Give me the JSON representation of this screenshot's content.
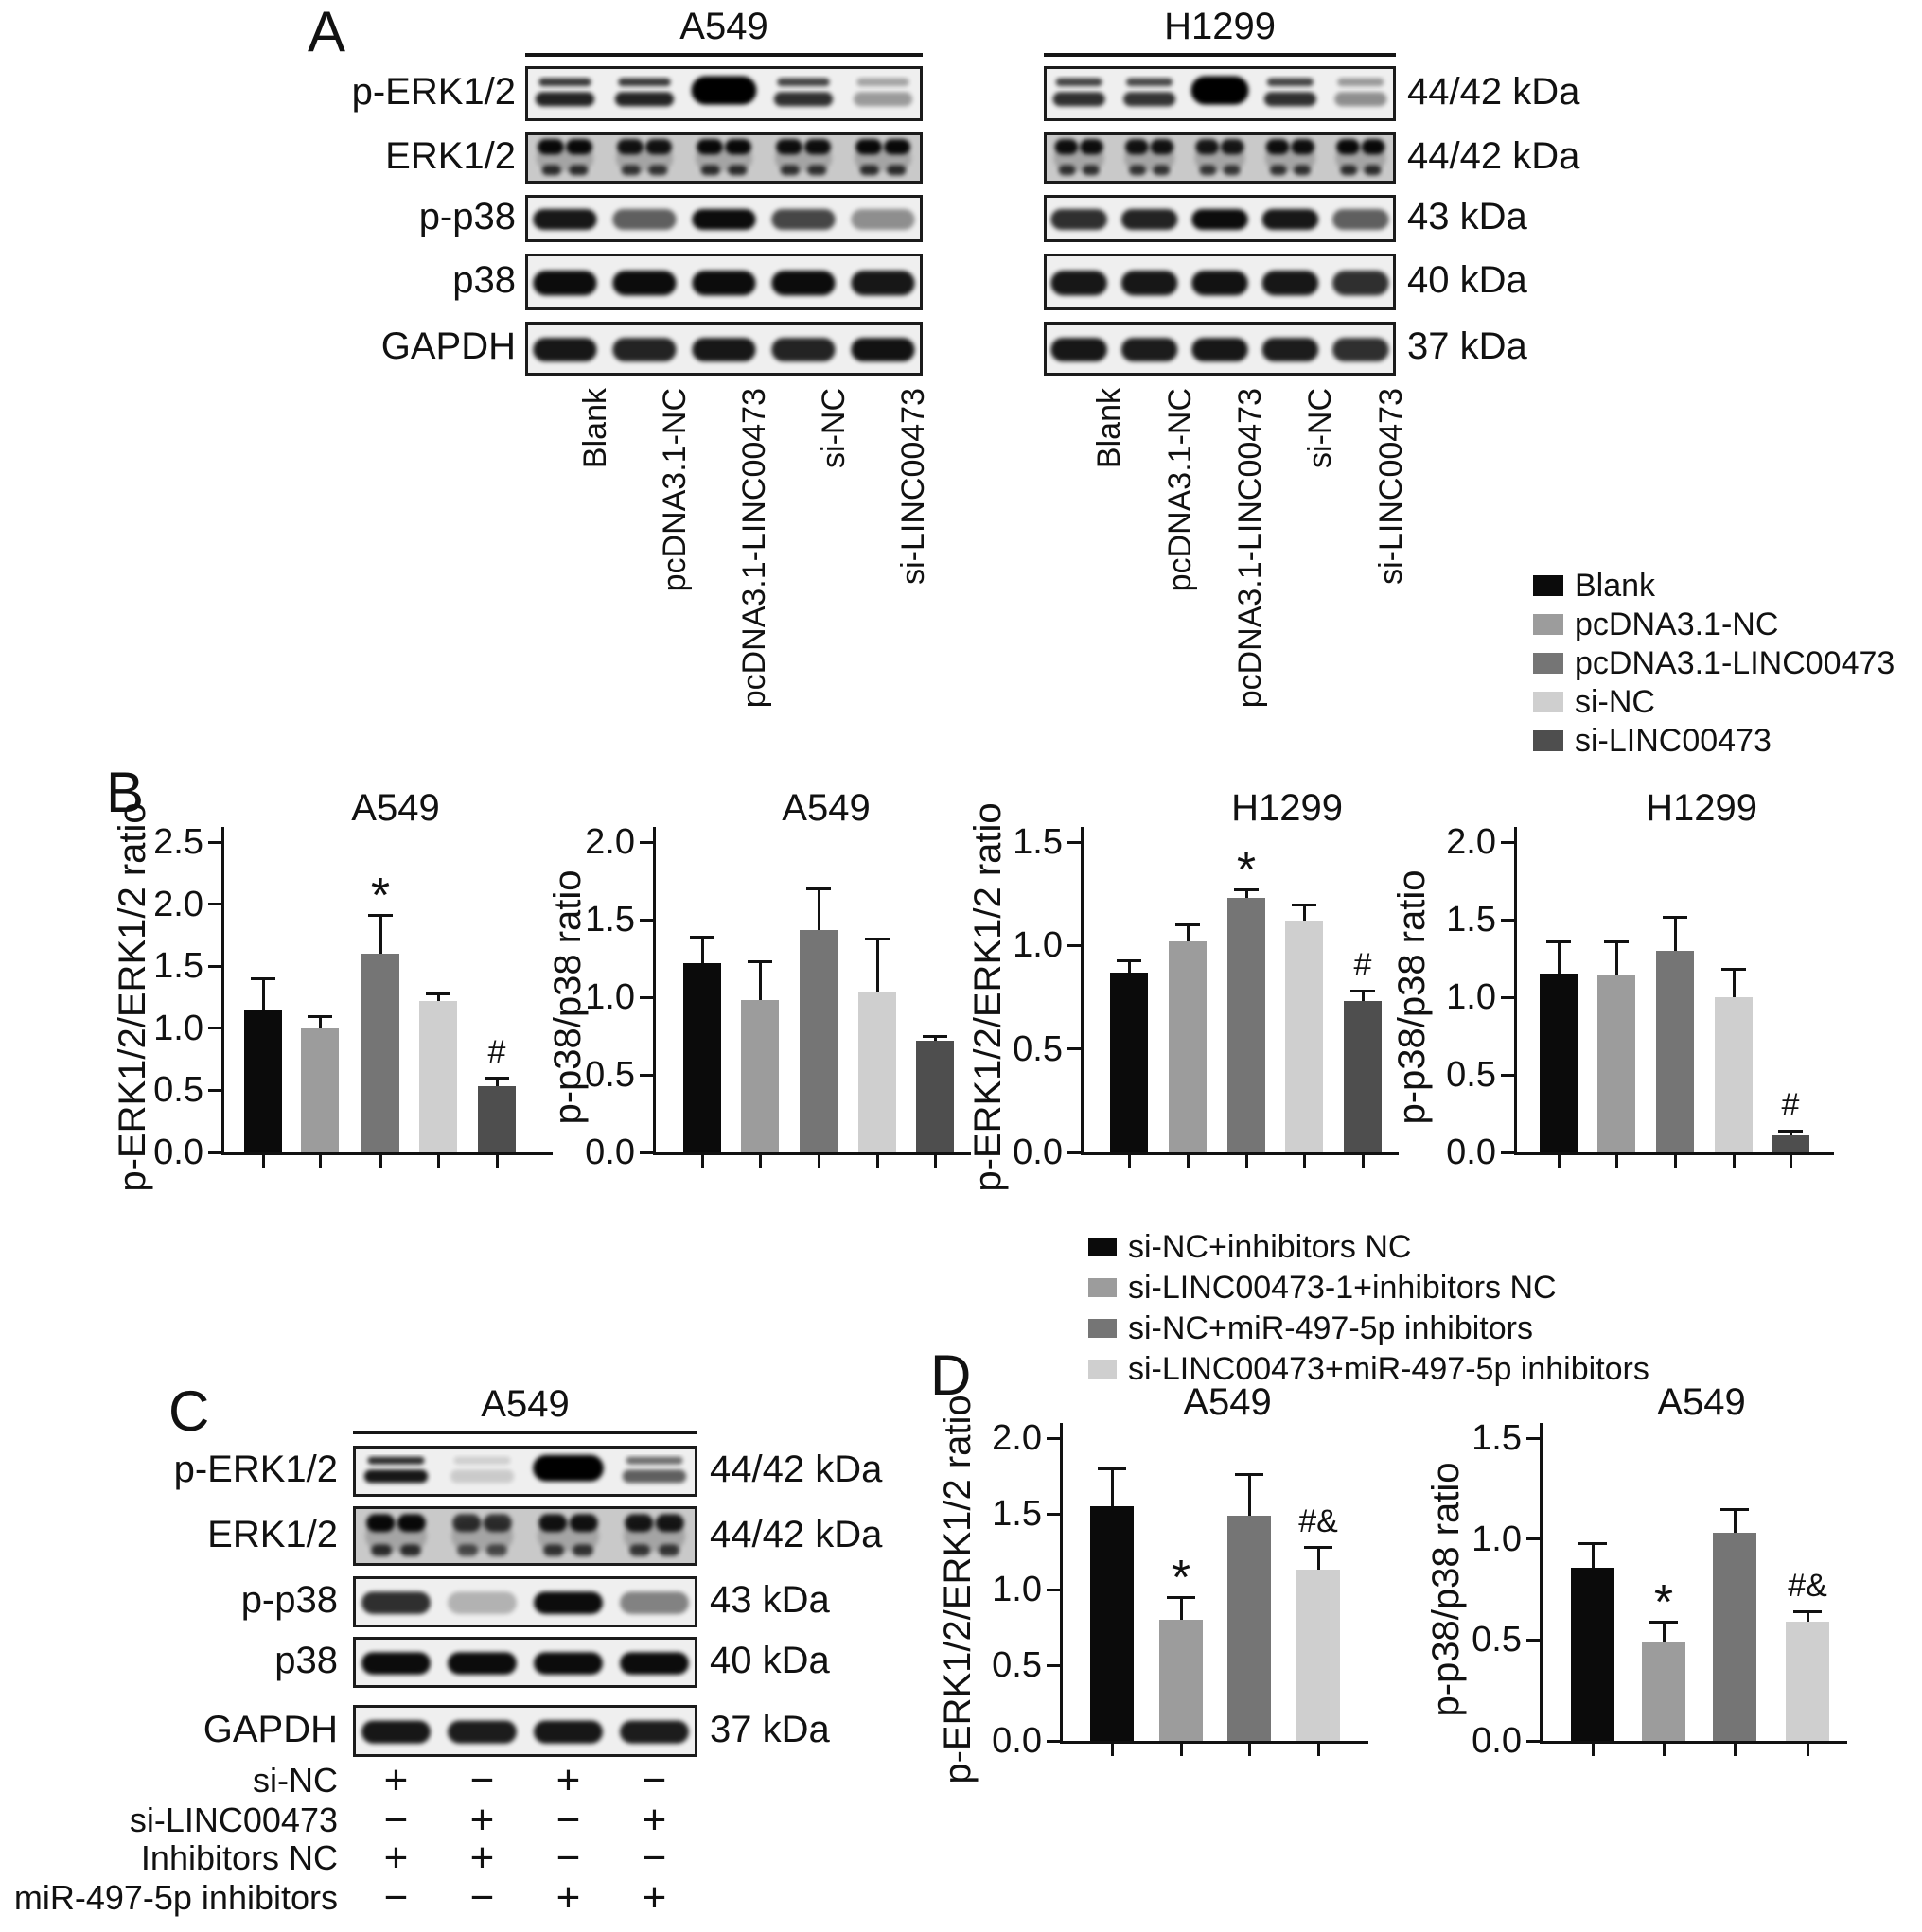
{
  "panels": {
    "a": "A",
    "b": "B",
    "c": "C",
    "d": "D"
  },
  "blot_row_labels": [
    "p-ERK1/2",
    "ERK1/2",
    "p-p38",
    "p38",
    "GAPDH"
  ],
  "kda_labels": [
    "44/42 kDa",
    "44/42 kDa",
    "43 kDa",
    "40 kDa",
    "37 kDa"
  ],
  "lane_labels": [
    "Blank",
    "pcDNA3.1-NC",
    "pcDNA3.1-LINC00473",
    "si-NC",
    "si-LINC00473"
  ],
  "panel_a": {
    "groups": [
      {
        "title": "A549",
        "rows": [
          {
            "style": "double",
            "bands": [
              0.85,
              0.85,
              1.0,
              0.8,
              0.35
            ]
          },
          {
            "style": "spotty",
            "bands": [
              0.95,
              0.9,
              0.95,
              0.92,
              0.95
            ]
          },
          {
            "style": "single",
            "bands": [
              0.9,
              0.6,
              0.95,
              0.7,
              0.4
            ]
          },
          {
            "style": "single",
            "bands": [
              0.95,
              0.95,
              0.95,
              0.95,
              0.9
            ]
          },
          {
            "style": "single",
            "bands": [
              0.9,
              0.85,
              0.9,
              0.85,
              0.92
            ]
          }
        ]
      },
      {
        "title": "H1299",
        "rows": [
          {
            "style": "double",
            "bands": [
              0.8,
              0.78,
              1.0,
              0.8,
              0.4
            ]
          },
          {
            "style": "spotty",
            "bands": [
              0.92,
              0.9,
              0.88,
              0.92,
              0.95
            ]
          },
          {
            "style": "single",
            "bands": [
              0.8,
              0.85,
              0.95,
              0.9,
              0.6
            ]
          },
          {
            "style": "single",
            "bands": [
              0.9,
              0.9,
              0.92,
              0.9,
              0.8
            ]
          },
          {
            "style": "single",
            "bands": [
              0.9,
              0.88,
              0.9,
              0.88,
              0.8
            ]
          }
        ]
      }
    ]
  },
  "panel_c": {
    "title": "A549",
    "rows": [
      {
        "style": "double",
        "bands": [
          0.9,
          0.15,
          1.0,
          0.6
        ]
      },
      {
        "style": "spotty",
        "bands": [
          0.95,
          0.75,
          0.9,
          0.88
        ]
      },
      {
        "style": "single",
        "bands": [
          0.8,
          0.25,
          0.95,
          0.45
        ]
      },
      {
        "style": "single",
        "bands": [
          0.95,
          0.95,
          0.95,
          0.95
        ]
      },
      {
        "style": "single",
        "bands": [
          0.9,
          0.88,
          0.9,
          0.88
        ]
      }
    ],
    "treatments": [
      {
        "label": "si-NC",
        "signs": [
          "+",
          "−",
          "+",
          "−"
        ]
      },
      {
        "label": "si-LINC00473",
        "signs": [
          "−",
          "+",
          "−",
          "+"
        ]
      },
      {
        "label": "Inhibitors NC",
        "signs": [
          "+",
          "+",
          "−",
          "−"
        ]
      },
      {
        "label": "miR-497-5p inhibitors",
        "signs": [
          "−",
          "−",
          "+",
          "+"
        ]
      }
    ]
  },
  "legend_ab": [
    {
      "label": "Blank",
      "color": "#0b0b0b"
    },
    {
      "label": "pcDNA3.1-NC",
      "color": "#9c9c9c"
    },
    {
      "label": "pcDNA3.1-LINC00473",
      "color": "#757575"
    },
    {
      "label": "si-NC",
      "color": "#cfcfcf"
    },
    {
      "label": "si-LINC00473",
      "color": "#4e4e4e"
    }
  ],
  "legend_d": [
    {
      "label": "si-NC+inhibitors NC",
      "color": "#0b0b0b"
    },
    {
      "label": "si-LINC00473-1+inhibitors NC",
      "color": "#9c9c9c"
    },
    {
      "label": "si-NC+miR-497-5p inhibitors",
      "color": "#757575"
    },
    {
      "label": "si-LINC00473+miR-497-5p inhibitors",
      "color": "#cfcfcf"
    }
  ],
  "chart_data": [
    {
      "id": "b1",
      "panel": "B",
      "type": "bar",
      "title": "A549",
      "xlabel": "",
      "ylabel": "p-ERK1/2/ERK1/2 ratio",
      "ylim": [
        0,
        2.5
      ],
      "ytick_step": 0.5,
      "grid": false,
      "legend_ref": "legend_ab",
      "categories": [
        "Blank",
        "pcDNA3.1-NC",
        "pcDNA3.1-LINC00473",
        "si-NC",
        "si-LINC00473"
      ],
      "values": [
        1.15,
        1.0,
        1.6,
        1.22,
        0.53
      ],
      "errors": [
        0.25,
        0.1,
        0.31,
        0.06,
        0.07
      ],
      "sig": [
        "",
        "",
        "*",
        "",
        "#"
      ]
    },
    {
      "id": "b2",
      "panel": "B",
      "type": "bar",
      "title": "A549",
      "xlabel": "",
      "ylabel": "p-p38/p38 ratio",
      "ylim": [
        0,
        2.0
      ],
      "ytick_step": 0.5,
      "grid": false,
      "legend_ref": "legend_ab",
      "categories": [
        "Blank",
        "pcDNA3.1-NC",
        "pcDNA3.1-LINC00473",
        "si-NC",
        "si-LINC00473"
      ],
      "values": [
        1.22,
        0.98,
        1.43,
        1.03,
        0.72
      ],
      "errors": [
        0.17,
        0.25,
        0.27,
        0.35,
        0.03
      ],
      "sig": [
        "",
        "",
        "",
        "",
        ""
      ]
    },
    {
      "id": "b3",
      "panel": "B",
      "type": "bar",
      "title": "H1299",
      "xlabel": "",
      "ylabel": "p-ERK1/2/ERK1/2 ratio",
      "ylim": [
        0,
        1.5
      ],
      "ytick_step": 0.5,
      "grid": false,
      "legend_ref": "legend_ab",
      "categories": [
        "Blank",
        "pcDNA3.1-NC",
        "pcDNA3.1-LINC00473",
        "si-NC",
        "si-LINC00473"
      ],
      "values": [
        0.87,
        1.02,
        1.23,
        1.12,
        0.73
      ],
      "errors": [
        0.06,
        0.08,
        0.04,
        0.08,
        0.05
      ],
      "sig": [
        "",
        "",
        "*",
        "",
        "#"
      ]
    },
    {
      "id": "b4",
      "panel": "B",
      "type": "bar",
      "title": "H1299",
      "xlabel": "",
      "ylabel": "p-p38/p38 ratio",
      "ylim": [
        0,
        2.0
      ],
      "ytick_step": 0.5,
      "grid": false,
      "legend_ref": "legend_ab",
      "categories": [
        "Blank",
        "pcDNA3.1-NC",
        "pcDNA3.1-LINC00473",
        "si-NC",
        "si-LINC00473"
      ],
      "values": [
        1.15,
        1.14,
        1.3,
        1.0,
        0.11
      ],
      "errors": [
        0.21,
        0.22,
        0.22,
        0.18,
        0.03
      ],
      "sig": [
        "",
        "",
        "",
        "",
        "#"
      ]
    },
    {
      "id": "d1",
      "panel": "D",
      "type": "bar",
      "title": "A549",
      "xlabel": "",
      "ylabel": "p-ERK1/2/ERK1/2 ratio",
      "ylim": [
        0,
        2.0
      ],
      "ytick_step": 0.5,
      "grid": false,
      "legend_ref": "legend_d",
      "categories": [
        "si-NC+inhibitors NC",
        "si-LINC00473-1+inhibitors NC",
        "si-NC+miR-497-5p inhibitors",
        "si-LINC00473+miR-497-5p inhibitors"
      ],
      "values": [
        1.55,
        0.8,
        1.49,
        1.13
      ],
      "errors": [
        0.25,
        0.15,
        0.27,
        0.15
      ],
      "sig": [
        "",
        "*",
        "",
        "#&"
      ]
    },
    {
      "id": "d2",
      "panel": "D",
      "type": "bar",
      "title": "A549",
      "xlabel": "",
      "ylabel": "p-p38/p38 ratio",
      "ylim": [
        0,
        1.5
      ],
      "ytick_step": 0.5,
      "grid": false,
      "legend_ref": "legend_d",
      "categories": [
        "si-NC+inhibitors NC",
        "si-LINC00473-1+inhibitors NC",
        "si-NC+miR-497-5p inhibitors",
        "si-LINC00473+miR-497-5p inhibitors"
      ],
      "values": [
        0.86,
        0.49,
        1.03,
        0.59
      ],
      "errors": [
        0.12,
        0.1,
        0.12,
        0.05
      ],
      "sig": [
        "",
        "*",
        "",
        "#&"
      ]
    }
  ]
}
